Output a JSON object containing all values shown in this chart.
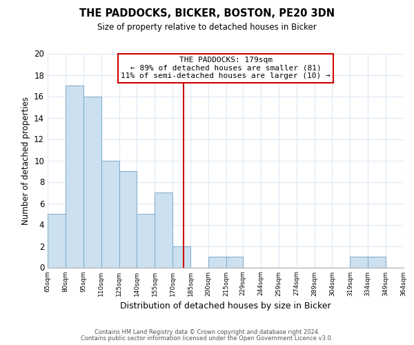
{
  "title": "THE PADDOCKS, BICKER, BOSTON, PE20 3DN",
  "subtitle": "Size of property relative to detached houses in Bicker",
  "xlabel": "Distribution of detached houses by size in Bicker",
  "ylabel": "Number of detached properties",
  "bar_color": "#cce0f0",
  "bar_edge_color": "#7aaac8",
  "grid_color": "#dce8f4",
  "annotation_box_edge": "#cc0000",
  "vline_color": "#cc0000",
  "background_color": "#ffffff",
  "bin_edges": [
    65,
    80,
    95,
    110,
    125,
    140,
    155,
    170,
    185,
    200,
    215,
    229,
    244,
    259,
    274,
    289,
    304,
    319,
    334,
    349,
    364
  ],
  "counts": [
    5,
    17,
    16,
    10,
    9,
    5,
    7,
    2,
    0,
    1,
    1,
    0,
    0,
    0,
    0,
    0,
    0,
    1,
    1,
    0
  ],
  "tick_labels": [
    "65sqm",
    "80sqm",
    "95sqm",
    "110sqm",
    "125sqm",
    "140sqm",
    "155sqm",
    "170sqm",
    "185sqm",
    "200sqm",
    "215sqm",
    "229sqm",
    "244sqm",
    "259sqm",
    "274sqm",
    "289sqm",
    "304sqm",
    "319sqm",
    "334sqm",
    "349sqm",
    "364sqm"
  ],
  "vline_x": 179,
  "annotation_title": "THE PADDOCKS: 179sqm",
  "annotation_line1": "← 89% of detached houses are smaller (81)",
  "annotation_line2": "11% of semi-detached houses are larger (10) →",
  "ylim": [
    0,
    20
  ],
  "yticks": [
    0,
    2,
    4,
    6,
    8,
    10,
    12,
    14,
    16,
    18,
    20
  ],
  "footnote1": "Contains HM Land Registry data © Crown copyright and database right 2024.",
  "footnote2": "Contains public sector information licensed under the Open Government Licence v3.0."
}
